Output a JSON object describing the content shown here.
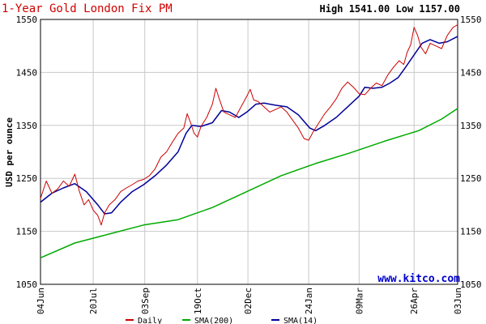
{
  "chart_data": {
    "type": "line",
    "title": "1-Year Gold London Fix PM",
    "high_label": "High",
    "high_value": "1541.00",
    "low_label": "Low",
    "low_value": "1157.00",
    "ylabel": "USD per ounce",
    "watermark": "www.kitco.com",
    "ylim": [
      1050,
      1550
    ],
    "y_ticks": [
      "1550",
      "1450",
      "1350",
      "1250",
      "1150",
      "1050"
    ],
    "x_ticks": [
      {
        "label": "04Jun",
        "day": 0
      },
      {
        "label": "20Jul",
        "day": 46
      },
      {
        "label": "03Sep",
        "day": 91
      },
      {
        "label": "19Oct",
        "day": 137
      },
      {
        "label": "02Dec",
        "day": 181
      },
      {
        "label": "24Jan",
        "day": 234
      },
      {
        "label": "09Mar",
        "day": 278
      },
      {
        "label": "26Apr",
        "day": 326
      },
      {
        "label": "03Jun",
        "day": 364
      }
    ],
    "grid": true,
    "legend_position": "bottom",
    "series": [
      {
        "name": "Daily",
        "color": "#cc0000",
        "points": [
          [
            0,
            1212
          ],
          [
            5,
            1245
          ],
          [
            10,
            1222
          ],
          [
            15,
            1230
          ],
          [
            20,
            1245
          ],
          [
            25,
            1235
          ],
          [
            30,
            1258
          ],
          [
            34,
            1225
          ],
          [
            38,
            1200
          ],
          [
            42,
            1210
          ],
          [
            46,
            1190
          ],
          [
            50,
            1180
          ],
          [
            53,
            1162
          ],
          [
            56,
            1185
          ],
          [
            60,
            1200
          ],
          [
            65,
            1210
          ],
          [
            70,
            1225
          ],
          [
            75,
            1232
          ],
          [
            80,
            1238
          ],
          [
            85,
            1245
          ],
          [
            90,
            1248
          ],
          [
            95,
            1255
          ],
          [
            100,
            1268
          ],
          [
            105,
            1290
          ],
          [
            110,
            1300
          ],
          [
            115,
            1318
          ],
          [
            120,
            1335
          ],
          [
            125,
            1345
          ],
          [
            128,
            1372
          ],
          [
            131,
            1355
          ],
          [
            134,
            1335
          ],
          [
            137,
            1328
          ],
          [
            140,
            1348
          ],
          [
            145,
            1365
          ],
          [
            150,
            1390
          ],
          [
            153,
            1420
          ],
          [
            156,
            1400
          ],
          [
            160,
            1375
          ],
          [
            165,
            1370
          ],
          [
            170,
            1365
          ],
          [
            175,
            1385
          ],
          [
            180,
            1405
          ],
          [
            183,
            1418
          ],
          [
            186,
            1398
          ],
          [
            190,
            1395
          ],
          [
            195,
            1385
          ],
          [
            200,
            1375
          ],
          [
            205,
            1380
          ],
          [
            210,
            1385
          ],
          [
            215,
            1375
          ],
          [
            220,
            1360
          ],
          [
            225,
            1345
          ],
          [
            230,
            1325
          ],
          [
            234,
            1322
          ],
          [
            238,
            1338
          ],
          [
            243,
            1355
          ],
          [
            248,
            1372
          ],
          [
            253,
            1385
          ],
          [
            258,
            1400
          ],
          [
            263,
            1420
          ],
          [
            268,
            1432
          ],
          [
            273,
            1422
          ],
          [
            278,
            1410
          ],
          [
            283,
            1408
          ],
          [
            288,
            1420
          ],
          [
            293,
            1430
          ],
          [
            298,
            1425
          ],
          [
            303,
            1445
          ],
          [
            308,
            1460
          ],
          [
            313,
            1472
          ],
          [
            317,
            1465
          ],
          [
            320,
            1488
          ],
          [
            323,
            1502
          ],
          [
            326,
            1535
          ],
          [
            329,
            1520
          ],
          [
            332,
            1498
          ],
          [
            336,
            1485
          ],
          [
            340,
            1505
          ],
          [
            345,
            1500
          ],
          [
            350,
            1495
          ],
          [
            355,
            1520
          ],
          [
            360,
            1535
          ],
          [
            364,
            1540
          ]
        ]
      },
      {
        "name": "SMA(200)",
        "color": "#00aa00",
        "points": [
          [
            0,
            1100
          ],
          [
            30,
            1128
          ],
          [
            60,
            1145
          ],
          [
            90,
            1162
          ],
          [
            120,
            1172
          ],
          [
            150,
            1195
          ],
          [
            180,
            1225
          ],
          [
            210,
            1255
          ],
          [
            240,
            1278
          ],
          [
            270,
            1298
          ],
          [
            300,
            1320
          ],
          [
            330,
            1340
          ],
          [
            350,
            1362
          ],
          [
            364,
            1382
          ]
        ]
      },
      {
        "name": "SMA(14)",
        "color": "#000099",
        "points": [
          [
            0,
            1205
          ],
          [
            10,
            1222
          ],
          [
            20,
            1232
          ],
          [
            30,
            1240
          ],
          [
            40,
            1225
          ],
          [
            50,
            1200
          ],
          [
            56,
            1183
          ],
          [
            62,
            1185
          ],
          [
            70,
            1205
          ],
          [
            80,
            1225
          ],
          [
            90,
            1238
          ],
          [
            100,
            1255
          ],
          [
            110,
            1275
          ],
          [
            120,
            1300
          ],
          [
            127,
            1335
          ],
          [
            132,
            1350
          ],
          [
            140,
            1348
          ],
          [
            150,
            1355
          ],
          [
            158,
            1378
          ],
          [
            165,
            1375
          ],
          [
            173,
            1365
          ],
          [
            180,
            1375
          ],
          [
            188,
            1390
          ],
          [
            195,
            1392
          ],
          [
            205,
            1388
          ],
          [
            215,
            1385
          ],
          [
            225,
            1370
          ],
          [
            235,
            1345
          ],
          [
            240,
            1340
          ],
          [
            248,
            1350
          ],
          [
            258,
            1365
          ],
          [
            268,
            1385
          ],
          [
            278,
            1405
          ],
          [
            283,
            1422
          ],
          [
            290,
            1420
          ],
          [
            298,
            1422
          ],
          [
            305,
            1430
          ],
          [
            312,
            1440
          ],
          [
            318,
            1458
          ],
          [
            325,
            1480
          ],
          [
            333,
            1505
          ],
          [
            340,
            1512
          ],
          [
            348,
            1505
          ],
          [
            355,
            1508
          ],
          [
            364,
            1518
          ]
        ]
      }
    ]
  }
}
